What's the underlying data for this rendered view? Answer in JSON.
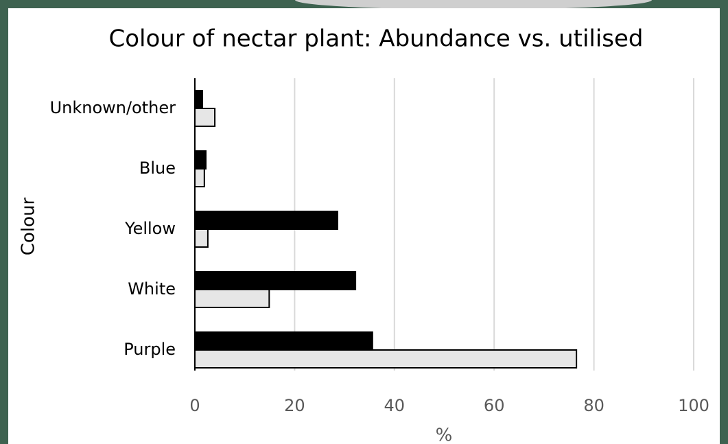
{
  "chart_data": {
    "type": "hbar",
    "title": "Colour of nectar plant: Abundance vs. utilised",
    "x_label": "%",
    "y_label": "Colour",
    "categories": [
      "Unknown/other",
      "Blue",
      "Yellow",
      "White",
      "Purple"
    ],
    "series": [
      {
        "color": "#000000",
        "values": [
          1.5,
          2.2,
          28.6,
          32.2,
          35.6
        ]
      },
      {
        "color": "#e6e6e6",
        "values": [
          4.0,
          1.9,
          2.6,
          14.9,
          76.5
        ]
      }
    ],
    "xlim": [
      0,
      100
    ],
    "xticks": [
      0,
      20,
      40,
      60,
      80,
      100
    ],
    "grid": true
  }
}
